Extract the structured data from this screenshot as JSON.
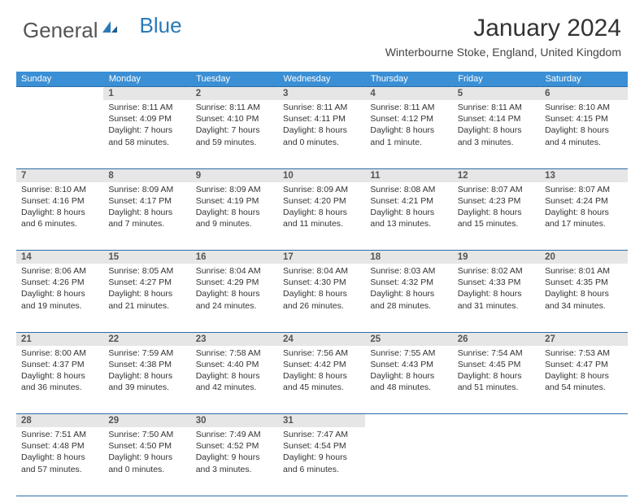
{
  "logo": {
    "text1": "General",
    "text2": "Blue"
  },
  "title": "January 2024",
  "location": "Winterbourne Stoke, England, United Kingdom",
  "header_bg": "#3b8fd4",
  "border_color": "#2a6da8",
  "daynum_bg": "#e6e6e6",
  "dayHeaders": [
    "Sunday",
    "Monday",
    "Tuesday",
    "Wednesday",
    "Thursday",
    "Friday",
    "Saturday"
  ],
  "weeks": [
    [
      null,
      {
        "n": "1",
        "sr": "Sunrise: 8:11 AM",
        "ss": "Sunset: 4:09 PM",
        "d1": "Daylight: 7 hours",
        "d2": "and 58 minutes."
      },
      {
        "n": "2",
        "sr": "Sunrise: 8:11 AM",
        "ss": "Sunset: 4:10 PM",
        "d1": "Daylight: 7 hours",
        "d2": "and 59 minutes."
      },
      {
        "n": "3",
        "sr": "Sunrise: 8:11 AM",
        "ss": "Sunset: 4:11 PM",
        "d1": "Daylight: 8 hours",
        "d2": "and 0 minutes."
      },
      {
        "n": "4",
        "sr": "Sunrise: 8:11 AM",
        "ss": "Sunset: 4:12 PM",
        "d1": "Daylight: 8 hours",
        "d2": "and 1 minute."
      },
      {
        "n": "5",
        "sr": "Sunrise: 8:11 AM",
        "ss": "Sunset: 4:14 PM",
        "d1": "Daylight: 8 hours",
        "d2": "and 3 minutes."
      },
      {
        "n": "6",
        "sr": "Sunrise: 8:10 AM",
        "ss": "Sunset: 4:15 PM",
        "d1": "Daylight: 8 hours",
        "d2": "and 4 minutes."
      }
    ],
    [
      {
        "n": "7",
        "sr": "Sunrise: 8:10 AM",
        "ss": "Sunset: 4:16 PM",
        "d1": "Daylight: 8 hours",
        "d2": "and 6 minutes."
      },
      {
        "n": "8",
        "sr": "Sunrise: 8:09 AM",
        "ss": "Sunset: 4:17 PM",
        "d1": "Daylight: 8 hours",
        "d2": "and 7 minutes."
      },
      {
        "n": "9",
        "sr": "Sunrise: 8:09 AM",
        "ss": "Sunset: 4:19 PM",
        "d1": "Daylight: 8 hours",
        "d2": "and 9 minutes."
      },
      {
        "n": "10",
        "sr": "Sunrise: 8:09 AM",
        "ss": "Sunset: 4:20 PM",
        "d1": "Daylight: 8 hours",
        "d2": "and 11 minutes."
      },
      {
        "n": "11",
        "sr": "Sunrise: 8:08 AM",
        "ss": "Sunset: 4:21 PM",
        "d1": "Daylight: 8 hours",
        "d2": "and 13 minutes."
      },
      {
        "n": "12",
        "sr": "Sunrise: 8:07 AM",
        "ss": "Sunset: 4:23 PM",
        "d1": "Daylight: 8 hours",
        "d2": "and 15 minutes."
      },
      {
        "n": "13",
        "sr": "Sunrise: 8:07 AM",
        "ss": "Sunset: 4:24 PM",
        "d1": "Daylight: 8 hours",
        "d2": "and 17 minutes."
      }
    ],
    [
      {
        "n": "14",
        "sr": "Sunrise: 8:06 AM",
        "ss": "Sunset: 4:26 PM",
        "d1": "Daylight: 8 hours",
        "d2": "and 19 minutes."
      },
      {
        "n": "15",
        "sr": "Sunrise: 8:05 AM",
        "ss": "Sunset: 4:27 PM",
        "d1": "Daylight: 8 hours",
        "d2": "and 21 minutes."
      },
      {
        "n": "16",
        "sr": "Sunrise: 8:04 AM",
        "ss": "Sunset: 4:29 PM",
        "d1": "Daylight: 8 hours",
        "d2": "and 24 minutes."
      },
      {
        "n": "17",
        "sr": "Sunrise: 8:04 AM",
        "ss": "Sunset: 4:30 PM",
        "d1": "Daylight: 8 hours",
        "d2": "and 26 minutes."
      },
      {
        "n": "18",
        "sr": "Sunrise: 8:03 AM",
        "ss": "Sunset: 4:32 PM",
        "d1": "Daylight: 8 hours",
        "d2": "and 28 minutes."
      },
      {
        "n": "19",
        "sr": "Sunrise: 8:02 AM",
        "ss": "Sunset: 4:33 PM",
        "d1": "Daylight: 8 hours",
        "d2": "and 31 minutes."
      },
      {
        "n": "20",
        "sr": "Sunrise: 8:01 AM",
        "ss": "Sunset: 4:35 PM",
        "d1": "Daylight: 8 hours",
        "d2": "and 34 minutes."
      }
    ],
    [
      {
        "n": "21",
        "sr": "Sunrise: 8:00 AM",
        "ss": "Sunset: 4:37 PM",
        "d1": "Daylight: 8 hours",
        "d2": "and 36 minutes."
      },
      {
        "n": "22",
        "sr": "Sunrise: 7:59 AM",
        "ss": "Sunset: 4:38 PM",
        "d1": "Daylight: 8 hours",
        "d2": "and 39 minutes."
      },
      {
        "n": "23",
        "sr": "Sunrise: 7:58 AM",
        "ss": "Sunset: 4:40 PM",
        "d1": "Daylight: 8 hours",
        "d2": "and 42 minutes."
      },
      {
        "n": "24",
        "sr": "Sunrise: 7:56 AM",
        "ss": "Sunset: 4:42 PM",
        "d1": "Daylight: 8 hours",
        "d2": "and 45 minutes."
      },
      {
        "n": "25",
        "sr": "Sunrise: 7:55 AM",
        "ss": "Sunset: 4:43 PM",
        "d1": "Daylight: 8 hours",
        "d2": "and 48 minutes."
      },
      {
        "n": "26",
        "sr": "Sunrise: 7:54 AM",
        "ss": "Sunset: 4:45 PM",
        "d1": "Daylight: 8 hours",
        "d2": "and 51 minutes."
      },
      {
        "n": "27",
        "sr": "Sunrise: 7:53 AM",
        "ss": "Sunset: 4:47 PM",
        "d1": "Daylight: 8 hours",
        "d2": "and 54 minutes."
      }
    ],
    [
      {
        "n": "28",
        "sr": "Sunrise: 7:51 AM",
        "ss": "Sunset: 4:48 PM",
        "d1": "Daylight: 8 hours",
        "d2": "and 57 minutes."
      },
      {
        "n": "29",
        "sr": "Sunrise: 7:50 AM",
        "ss": "Sunset: 4:50 PM",
        "d1": "Daylight: 9 hours",
        "d2": "and 0 minutes."
      },
      {
        "n": "30",
        "sr": "Sunrise: 7:49 AM",
        "ss": "Sunset: 4:52 PM",
        "d1": "Daylight: 9 hours",
        "d2": "and 3 minutes."
      },
      {
        "n": "31",
        "sr": "Sunrise: 7:47 AM",
        "ss": "Sunset: 4:54 PM",
        "d1": "Daylight: 9 hours",
        "d2": "and 6 minutes."
      },
      null,
      null,
      null
    ]
  ]
}
